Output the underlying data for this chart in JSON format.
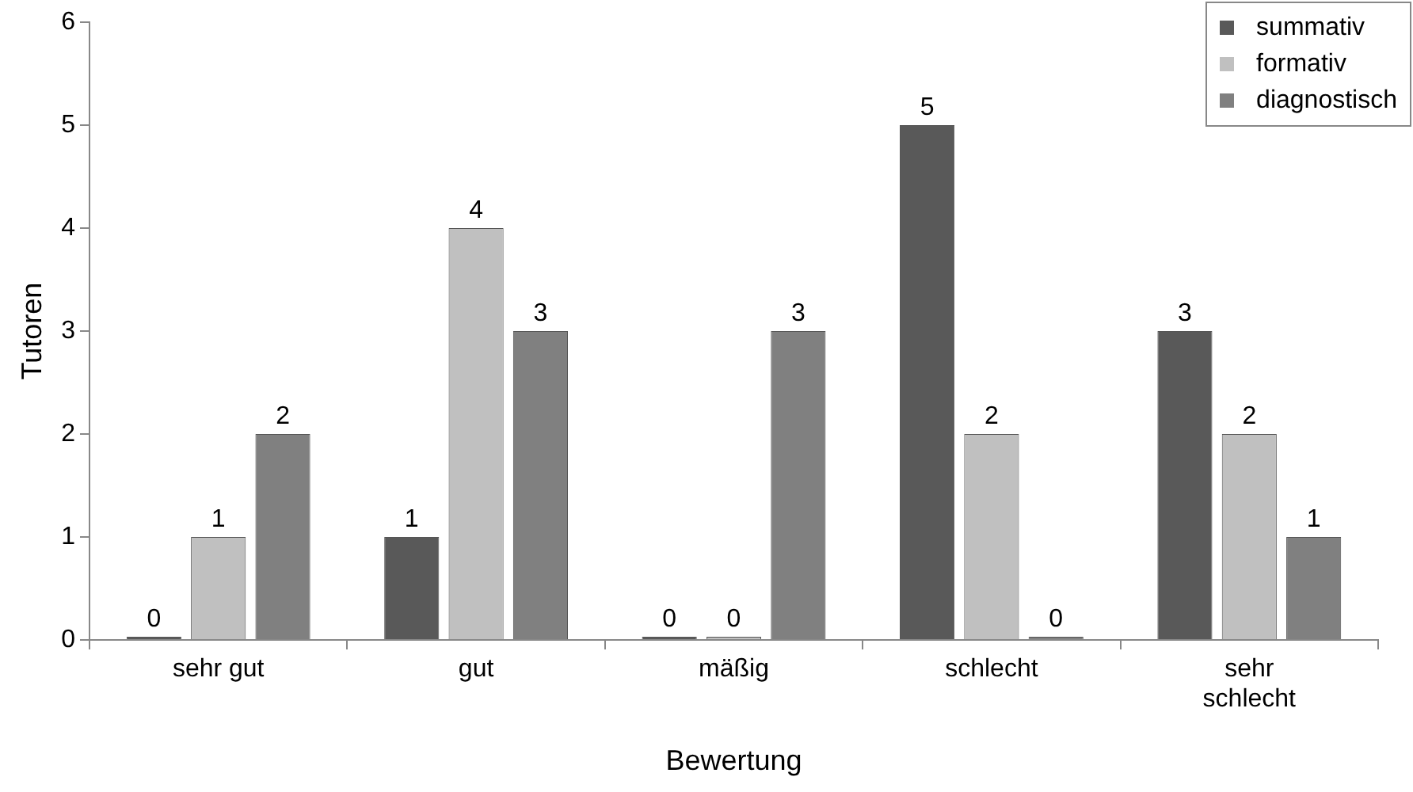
{
  "chart_data": {
    "type": "bar",
    "xlabel": "Bewertung",
    "ylabel": "Tutoren",
    "categories": [
      "sehr gut",
      "gut",
      "mäßig",
      "schlecht",
      "sehr schlecht"
    ],
    "series": [
      {
        "name": "summativ",
        "color": "#595959",
        "values": [
          0,
          1,
          0,
          5,
          3
        ]
      },
      {
        "name": "formativ",
        "color": "#c0c0c0",
        "values": [
          1,
          4,
          0,
          2,
          2
        ]
      },
      {
        "name": "diagnostisch",
        "color": "#808080",
        "values": [
          2,
          3,
          3,
          0,
          1
        ]
      }
    ],
    "ylim": [
      0,
      6
    ],
    "yticks": [
      0,
      1,
      2,
      3,
      4,
      5,
      6
    ],
    "grid": false,
    "legend": "top right",
    "data_labels": true
  }
}
